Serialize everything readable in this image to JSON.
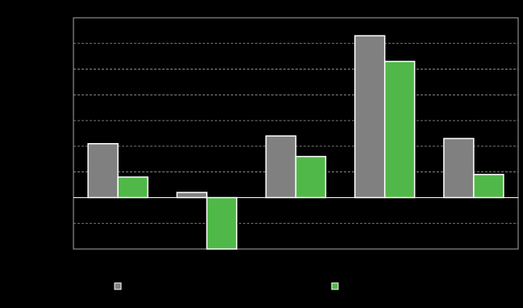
{
  "chart_data": {
    "type": "bar",
    "categories": [
      null,
      null,
      null,
      null,
      null
    ],
    "series": [
      {
        "color": "#808080",
        "values": [
          2.1,
          0.2,
          2.4,
          6.3,
          2.3
        ]
      },
      {
        "color": "#50b848",
        "values": [
          0.8,
          -2.0,
          1.6,
          5.3,
          0.9
        ]
      }
    ],
    "ylim": [
      -2,
      7
    ],
    "yticks": [
      -1,
      0,
      1,
      2,
      3,
      4,
      5,
      6
    ],
    "grid": true
  }
}
